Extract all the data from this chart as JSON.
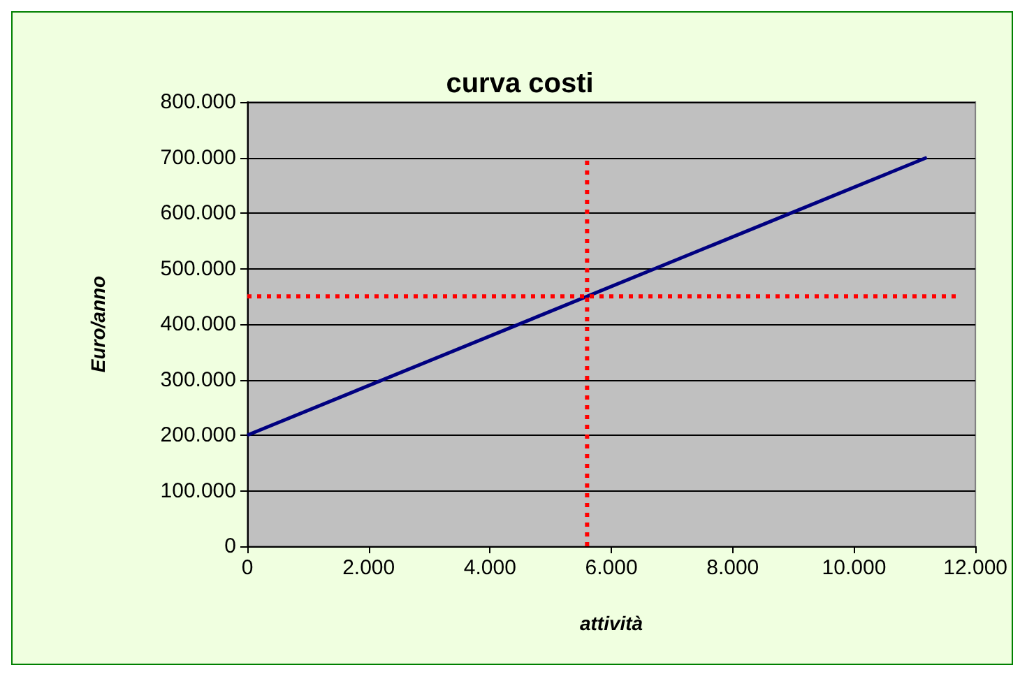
{
  "chart_data": {
    "type": "line",
    "title": "curva costi",
    "xlabel": "attività",
    "ylabel": "Euro/anno",
    "series": [
      {
        "color": "#000080",
        "x": [
          0,
          11200
        ],
        "values": [
          200000,
          700000
        ],
        "line_style": "solid"
      },
      {
        "color": "#ff0000",
        "x": [
          5600,
          5600
        ],
        "values": [
          0,
          700000
        ],
        "line_style": "dotted"
      },
      {
        "color": "#ff0000",
        "x": [
          0,
          11700
        ],
        "values": [
          450000,
          450000
        ],
        "line_style": "dotted"
      }
    ],
    "xlim": [
      0,
      12000
    ],
    "xticks": [
      0,
      {
        "value": 2000,
        "label": "2.000"
      },
      {
        "value": 4000,
        "label": "4.000"
      },
      {
        "value": 6000,
        "label": "6.000"
      },
      {
        "value": 8000,
        "label": "8.000"
      },
      {
        "value": 10000,
        "label": "10.000"
      },
      {
        "value": 12000,
        "label": "12.000"
      }
    ],
    "ylim": [
      0,
      800000
    ],
    "yticks": [
      0,
      {
        "value": 100000,
        "label": "100.000"
      },
      {
        "value": 200000,
        "label": "200.000"
      },
      {
        "value": 300000,
        "label": "300.000"
      },
      {
        "value": 400000,
        "label": "400.000"
      },
      {
        "value": 500000,
        "label": "500.000"
      },
      {
        "value": 600000,
        "label": "600.000"
      },
      {
        "value": 700000,
        "label": "700.000"
      },
      {
        "value": 800000,
        "label": "800.000"
      }
    ],
    "grid": "y",
    "marker": "none"
  }
}
